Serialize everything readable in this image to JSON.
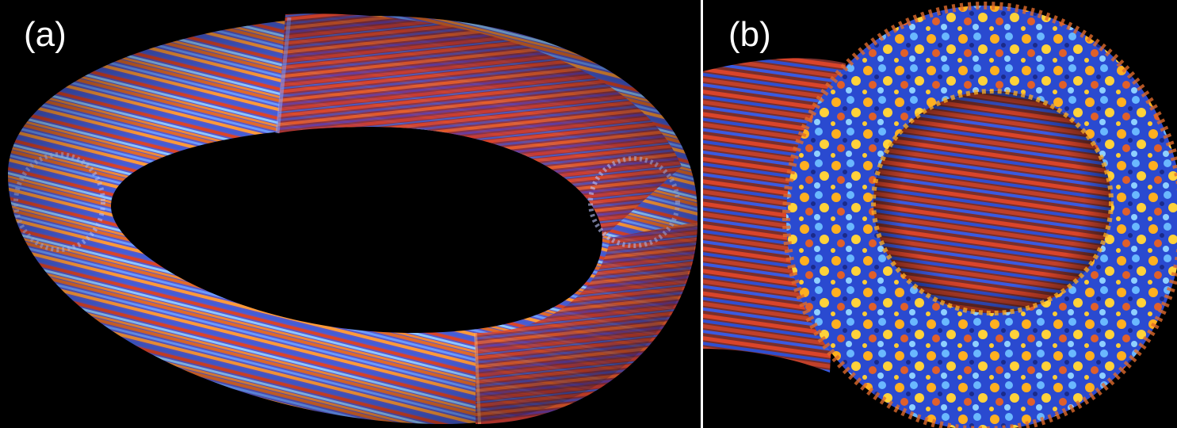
{
  "figure": {
    "panel_a": {
      "label": "(a)",
      "subject": "torus-flux-tube"
    },
    "panel_b": {
      "label": "(b)",
      "subject": "flux-tube-cross-section-turbulence"
    },
    "colors": {
      "background": "#000000",
      "red": "#d9442a",
      "orange": "#ff9933",
      "blue": "#3f6fe0",
      "light_blue": "#6fb8ff",
      "yellow": "#ffd23a",
      "purple": "#6a3a9a"
    }
  }
}
